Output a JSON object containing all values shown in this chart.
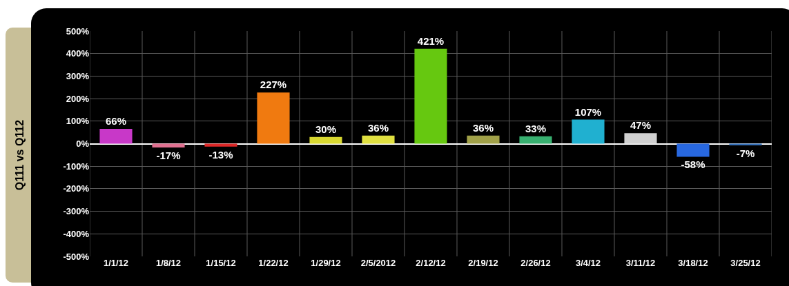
{
  "chart_data": {
    "type": "bar",
    "ylabel": "Q111 vs Q112",
    "categories": [
      "1/1/12",
      "1/8/12",
      "1/15/12",
      "1/22/12",
      "1/29/12",
      "2/5/2012",
      "2/12/12",
      "2/19/12",
      "2/26/12",
      "3/4/12",
      "3/11/12",
      "3/18/12",
      "3/25/12"
    ],
    "values": [
      66,
      -17,
      -13,
      227,
      30,
      36,
      421,
      36,
      33,
      107,
      47,
      -58,
      -7
    ],
    "value_labels": [
      "66%",
      "-17%",
      "-13%",
      "227%",
      "30%",
      "36%",
      "421%",
      "36%",
      "33%",
      "107%",
      "47%",
      "-58%",
      "-7%"
    ],
    "colors": [
      "#c838c8",
      "#e07090",
      "#e02828",
      "#f07a10",
      "#d8d830",
      "#e0e040",
      "#66c810",
      "#a0a048",
      "#38b070",
      "#20b0d0",
      "#d0d0d0",
      "#2868e0",
      "#3878c8"
    ],
    "ylim": [
      -500,
      500
    ],
    "yticks": [
      {
        "value": -500,
        "label": "-500%"
      },
      {
        "value": -400,
        "label": "-400%"
      },
      {
        "value": -300,
        "label": "-300%"
      },
      {
        "value": -200,
        "label": "-200%"
      },
      {
        "value": -100,
        "label": "-100%"
      },
      {
        "value": 0,
        "label": "0%"
      },
      {
        "value": 100,
        "label": "100%"
      },
      {
        "value": 200,
        "label": "200%"
      },
      {
        "value": 300,
        "label": "300%"
      },
      {
        "value": 400,
        "label": "400%"
      },
      {
        "value": 500,
        "label": "500%"
      }
    ],
    "grid": true
  }
}
